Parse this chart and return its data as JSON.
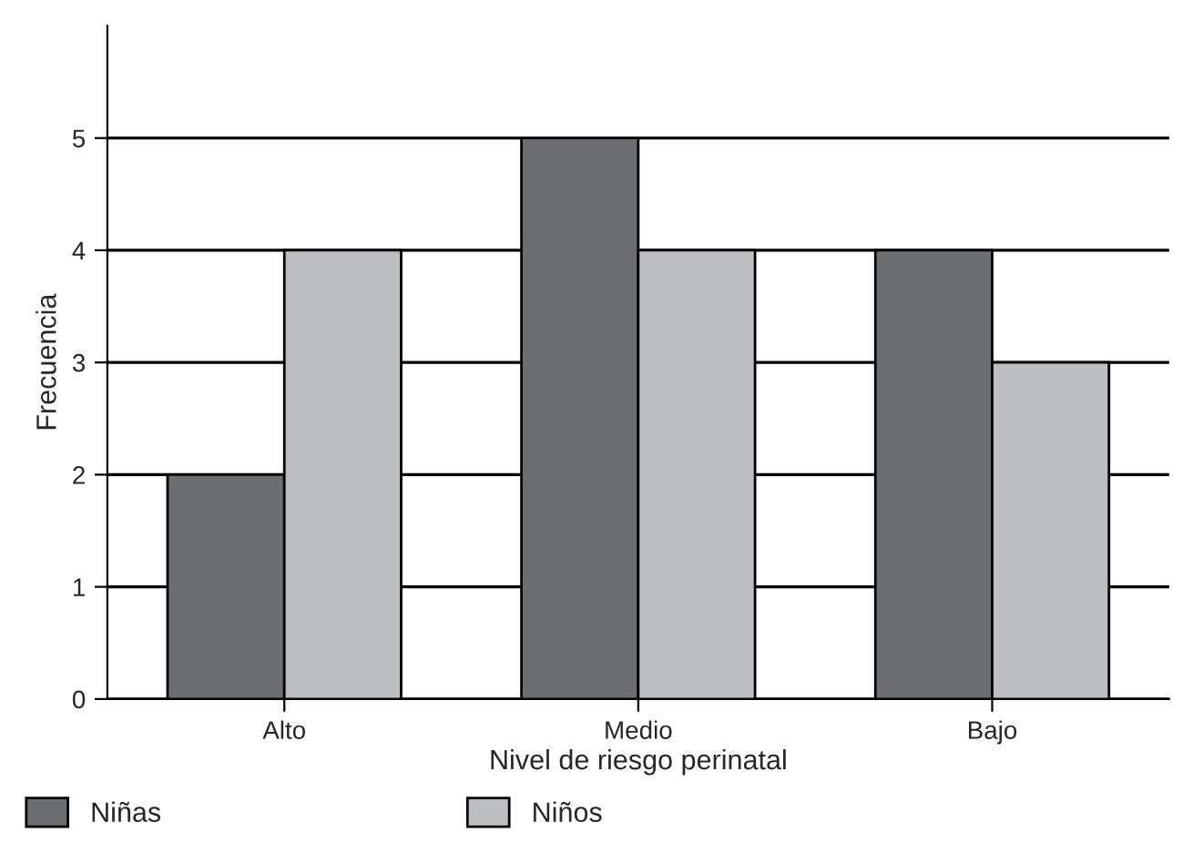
{
  "chart_data": {
    "type": "bar",
    "xlabel": "Nivel de riesgo perinatal",
    "ylabel": "Frecuencia",
    "categories": [
      "Alto",
      "Medio",
      "Bajo"
    ],
    "series": [
      {
        "name": "Niñas",
        "color": "#6d6e71",
        "values": [
          2,
          5,
          4
        ]
      },
      {
        "name": "Niños",
        "color": "#bcbec0",
        "values": [
          4,
          4,
          3
        ]
      }
    ],
    "ylim": [
      0,
      6
    ],
    "yticks": [
      0,
      1,
      2,
      3,
      4,
      5
    ],
    "grid": "y",
    "legend": "bottom"
  }
}
